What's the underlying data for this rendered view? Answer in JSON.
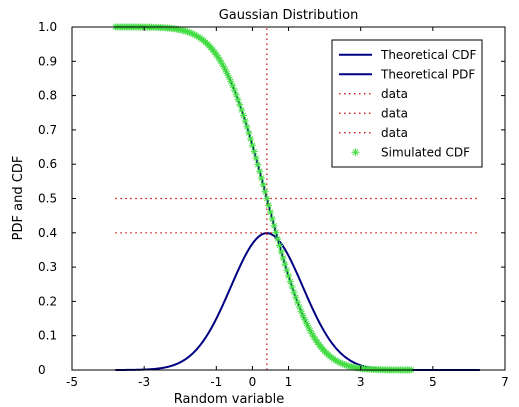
{
  "chart_data": {
    "type": "line",
    "title": "Gaussian Distribution",
    "xlabel": "Random variable",
    "ylabel": "PDF and CDF",
    "xlim": [
      -5,
      7
    ],
    "ylim": [
      0,
      1
    ],
    "x_ticks": [
      {
        "value": -5,
        "label": "-5"
      },
      {
        "value": -3,
        "label": "-3"
      },
      {
        "value": -1,
        "label": "-1"
      },
      {
        "value": 0,
        "label": "0"
      },
      {
        "value": 1,
        "label": "1"
      },
      {
        "value": 3,
        "label": "3"
      },
      {
        "value": 5,
        "label": "5"
      },
      {
        "value": 7,
        "label": "7"
      }
    ],
    "y_ticks": [
      {
        "value": 0,
        "label": "0"
      },
      {
        "value": 0.1,
        "label": "0.1"
      },
      {
        "value": 0.2,
        "label": "0.2"
      },
      {
        "value": 0.3,
        "label": "0.3"
      },
      {
        "value": 0.4,
        "label": "0.4"
      },
      {
        "value": 0.5,
        "label": "0.5"
      },
      {
        "value": 0.6,
        "label": "0.6"
      },
      {
        "value": 0.7,
        "label": "0.7"
      },
      {
        "value": 0.8,
        "label": "0.8"
      },
      {
        "value": 0.9,
        "label": "0.9"
      },
      {
        "value": 1,
        "label": "1.0"
      }
    ],
    "grid": false,
    "legend_position": "top-right",
    "series": [
      {
        "name": "Theoretical CDF",
        "kind": "line",
        "color": "#000080",
        "function": "1 - normal_cdf(x)",
        "mu": 0.4,
        "sigma": 1,
        "x_range": [
          -3.8,
          6.3
        ]
      },
      {
        "name": "Theoretical PDF",
        "kind": "line",
        "color": "#000080",
        "function": "normal_pdf(x)",
        "mu": 0.4,
        "sigma": 1,
        "x_range": [
          -3.8,
          6.3
        ]
      },
      {
        "name": "data",
        "kind": "dotted",
        "color": "#cc0000",
        "points": [
          [
            0.4,
            0
          ],
          [
            0.4,
            1
          ]
        ]
      },
      {
        "name": "data",
        "kind": "dotted",
        "color": "#cc0000",
        "points": [
          [
            -3.8,
            0.5
          ],
          [
            6.3,
            0.5
          ]
        ]
      },
      {
        "name": "data",
        "kind": "dotted",
        "color": "#cc0000",
        "points": [
          [
            -3.8,
            0.4
          ],
          [
            6.3,
            0.4
          ]
        ]
      },
      {
        "name": "Simulated CDF",
        "kind": "markers",
        "marker": "asterisk",
        "color": "#44dd44",
        "function": "1 - normal_cdf(x)",
        "mu": 0.4,
        "sigma": 1,
        "x_range": [
          -3.8,
          4.4
        ],
        "sample_step": 0.05
      }
    ]
  }
}
